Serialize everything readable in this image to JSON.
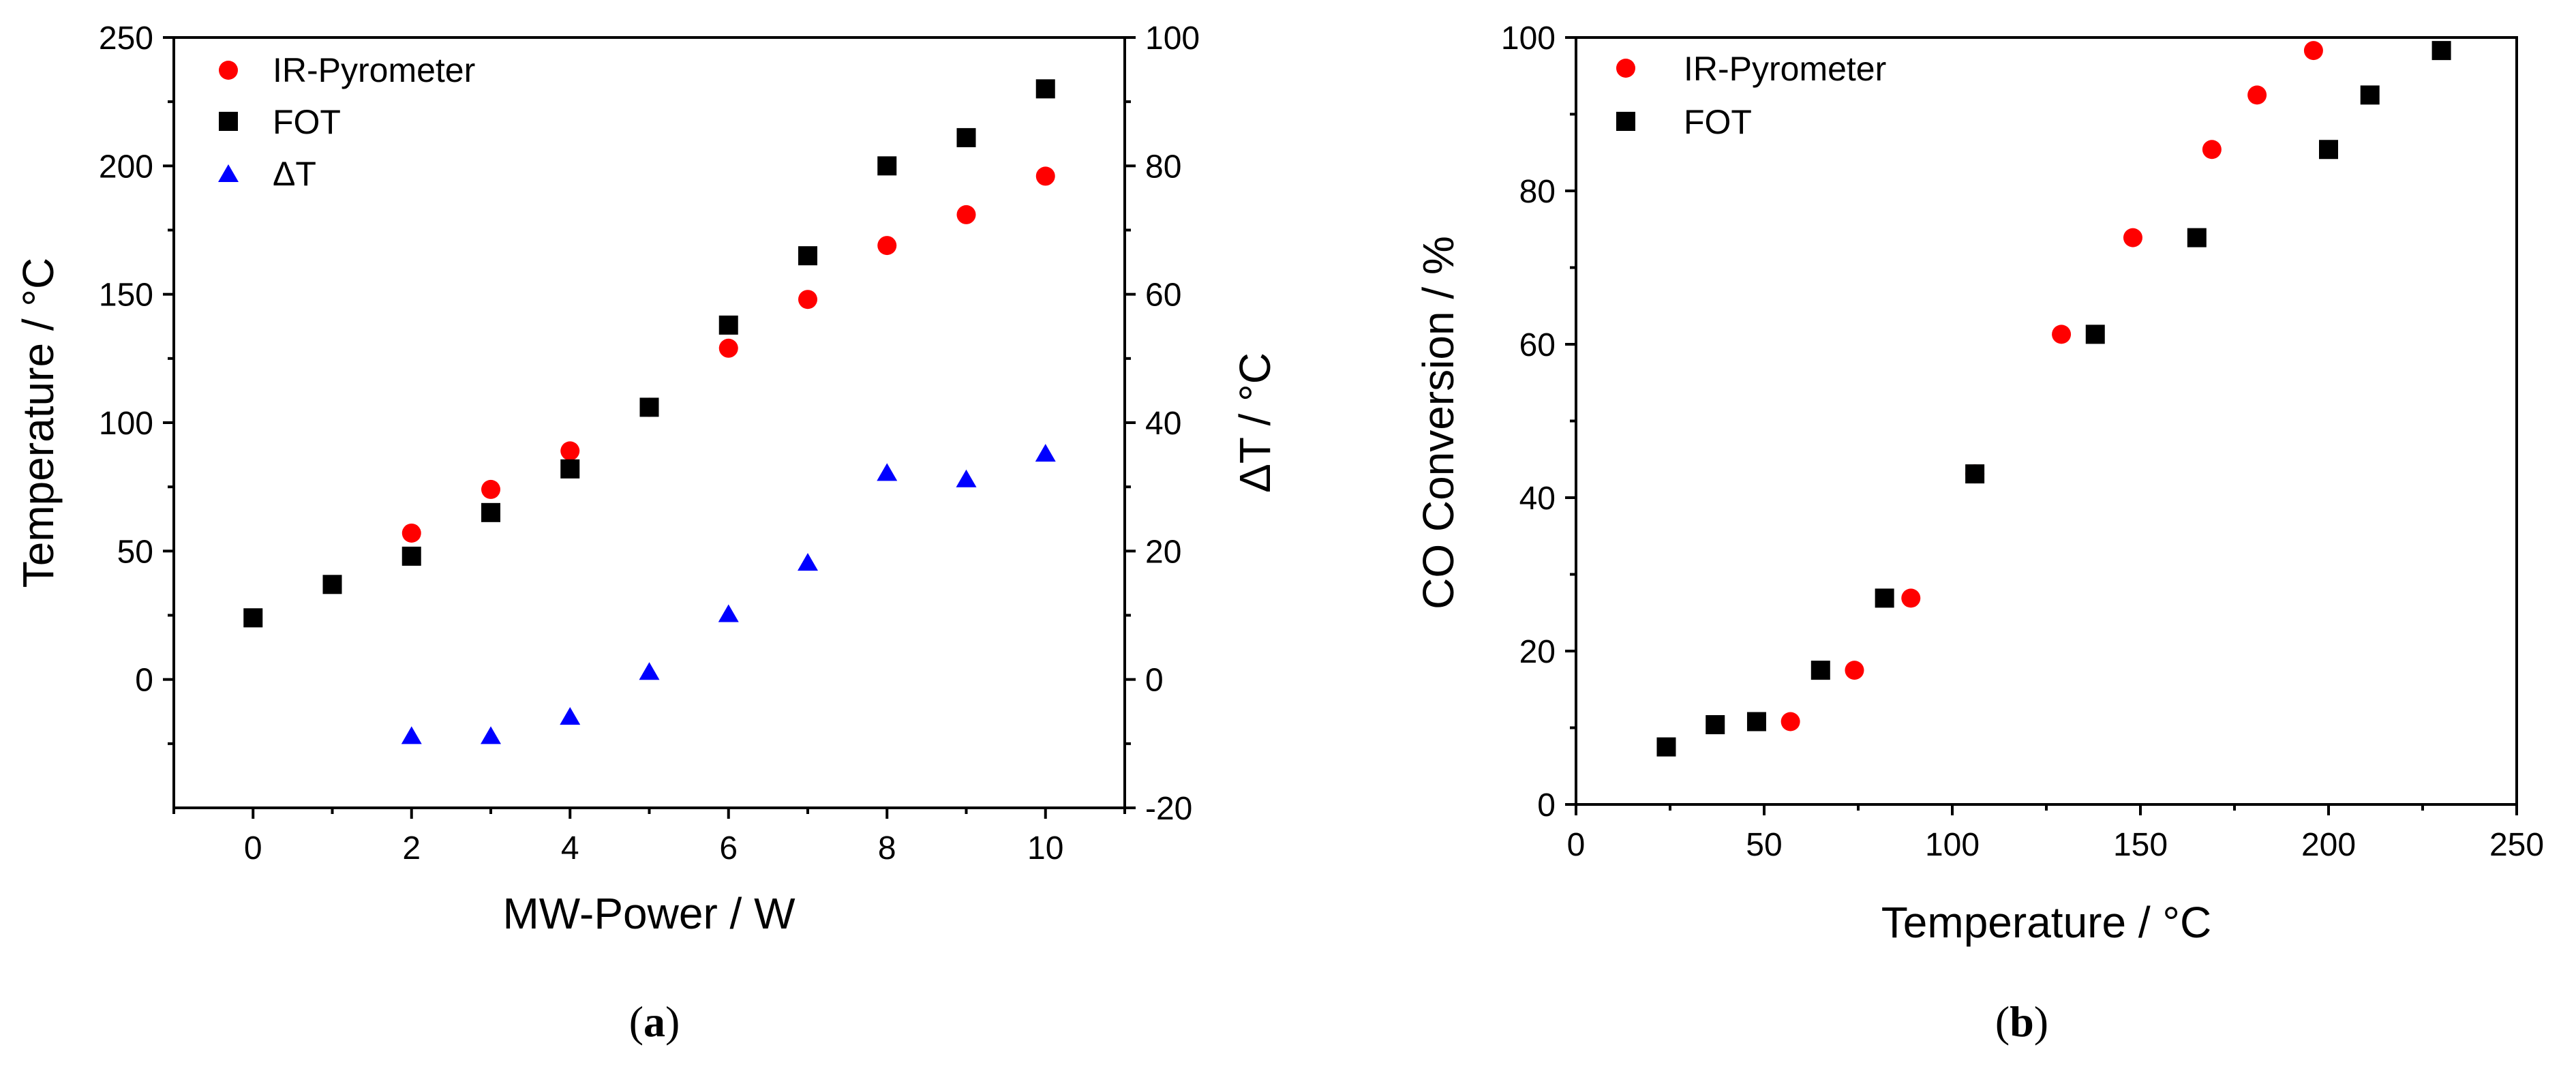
{
  "colors": {
    "ir": "#ff0000",
    "fot": "#000000",
    "dt": "#0000ff"
  },
  "chart_data": [
    {
      "id": "a",
      "type": "scatter",
      "label_open": "(",
      "label_letter": "a",
      "label_close": ")",
      "xlabel": "MW-Power / W",
      "ylabel": "Temperature / °C",
      "y2label": "ΔT / °C",
      "xlim": [
        -1,
        11
      ],
      "ylim": [
        -50,
        250
      ],
      "y2lim": [
        -20,
        100
      ],
      "xticks": [
        0,
        2,
        4,
        6,
        8,
        10
      ],
      "yticks": [
        0,
        50,
        100,
        150,
        200,
        250
      ],
      "y2ticks": [
        -20,
        0,
        20,
        40,
        60,
        80,
        100
      ],
      "legend": [
        "IR-Pyrometer",
        "FOT",
        "ΔT"
      ],
      "series": [
        {
          "name": "IR-Pyrometer",
          "marker": "circle",
          "color": "#ff0000",
          "axis": "left",
          "x": [
            2,
            3,
            4,
            5,
            6,
            7,
            8,
            9,
            10
          ],
          "y": [
            57,
            74,
            89,
            106,
            129,
            148,
            169,
            181,
            196
          ]
        },
        {
          "name": "FOT",
          "marker": "square",
          "color": "#000000",
          "axis": "left",
          "x": [
            0,
            1,
            2,
            3,
            4,
            5,
            6,
            7,
            8,
            9,
            10
          ],
          "y": [
            24,
            37,
            48,
            65,
            82,
            106,
            138,
            165,
            200,
            211,
            230
          ]
        },
        {
          "name": "ΔT",
          "marker": "triangle",
          "color": "#0000ff",
          "axis": "right",
          "x": [
            2,
            3,
            4,
            5,
            6,
            7,
            8,
            9,
            10
          ],
          "y": [
            -9,
            -9,
            -6,
            1,
            10,
            18,
            32,
            31,
            35
          ]
        }
      ]
    },
    {
      "id": "b",
      "type": "scatter",
      "label_open": "(",
      "label_letter": "b",
      "label_close": ")",
      "xlabel": "Temperature / °C",
      "ylabel": "CO Conversion / %",
      "xlim": [
        0,
        250
      ],
      "ylim": [
        0,
        100
      ],
      "xticks": [
        0,
        50,
        100,
        150,
        200,
        250
      ],
      "yticks": [
        0,
        20,
        40,
        60,
        80,
        100
      ],
      "legend": [
        "IR-Pyrometer",
        "FOT"
      ],
      "series": [
        {
          "name": "IR-Pyrometer",
          "marker": "circle",
          "color": "#ff0000",
          "x": [
            57,
            74,
            89,
            106,
            129,
            148,
            169,
            181,
            196
          ],
          "y": [
            10.8,
            17.5,
            26.9,
            43.1,
            61.3,
            73.9,
            85.4,
            92.5,
            98.3
          ]
        },
        {
          "name": "FOT",
          "marker": "square",
          "color": "#000000",
          "x": [
            24,
            37,
            48,
            65,
            82,
            106,
            138,
            165,
            200,
            211,
            230
          ],
          "y": [
            7.5,
            10.4,
            10.8,
            17.5,
            26.9,
            43.1,
            61.3,
            73.9,
            85.4,
            92.5,
            98.3
          ]
        }
      ]
    }
  ]
}
